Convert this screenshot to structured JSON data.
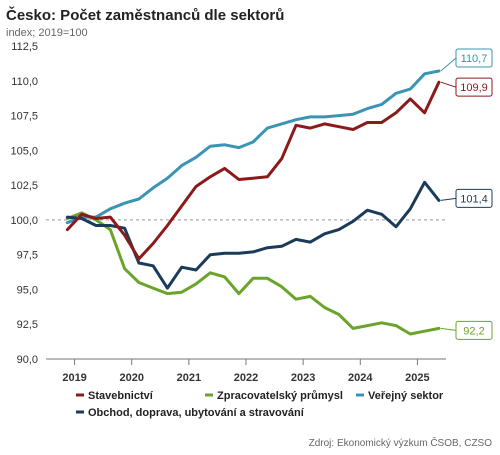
{
  "chart_data": {
    "type": "line",
    "title": "Česko: Počet zaměstnanců dle sektorů",
    "subtitle": "index; 2019=100",
    "source": "Zdroj: Ekonomický výzkum ČSOB, CZSO",
    "ylim": [
      90,
      112.5
    ],
    "yticks": [
      "90,0",
      "92,5",
      "95,0",
      "97,5",
      "100,0",
      "102,5",
      "105,0",
      "107,5",
      "110,0",
      "112,5"
    ],
    "ytick_values": [
      90,
      92.5,
      95,
      97.5,
      100,
      102.5,
      105,
      107.5,
      110,
      112.5
    ],
    "xlim": [
      2018.5,
      2025.5
    ],
    "xticks": [
      "2019",
      "2020",
      "2021",
      "2022",
      "2023",
      "2024",
      "2025"
    ],
    "xtick_values": [
      2019,
      2020,
      2021,
      2022,
      2023,
      2024,
      2025
    ],
    "reference_line": 100,
    "grid": false,
    "legend_position": "bottom",
    "x": [
      2018.875,
      2019.125,
      2019.375,
      2019.625,
      2019.875,
      2020.125,
      2020.375,
      2020.625,
      2020.875,
      2021.125,
      2021.375,
      2021.625,
      2021.875,
      2022.125,
      2022.375,
      2022.625,
      2022.875,
      2023.125,
      2023.375,
      2023.625,
      2023.875,
      2024.125,
      2024.375,
      2024.625,
      2024.875,
      2025.125,
      2025.375
    ],
    "series": [
      {
        "name": "Stavebnictví",
        "color": "#8b1a1a",
        "values": [
          99.3,
          100.4,
          100.1,
          100.2,
          98.9,
          97.2,
          98.3,
          99.6,
          101.0,
          102.4,
          103.1,
          103.7,
          102.9,
          103.0,
          103.1,
          104.4,
          106.8,
          106.6,
          106.9,
          106.7,
          106.5,
          107.0,
          107.0,
          107.7,
          108.7,
          107.7,
          109.9
        ],
        "end_label": "109,9"
      },
      {
        "name": "Zpracovatelský průmysl",
        "color": "#6aa42a",
        "values": [
          100.1,
          100.5,
          100.0,
          99.3,
          96.5,
          95.5,
          95.1,
          94.7,
          94.8,
          95.4,
          96.2,
          95.9,
          94.7,
          95.8,
          95.8,
          95.2,
          94.3,
          94.5,
          93.7,
          93.2,
          92.2,
          92.4,
          92.6,
          92.4,
          91.8,
          92.0,
          92.2
        ],
        "end_label": "92,2"
      },
      {
        "name": "Veřejný sektor",
        "color": "#3a94b4",
        "values": [
          99.8,
          100.2,
          100.2,
          100.8,
          101.2,
          101.5,
          102.3,
          103.0,
          103.9,
          104.5,
          105.3,
          105.4,
          105.2,
          105.6,
          106.6,
          106.9,
          107.2,
          107.4,
          107.4,
          107.5,
          107.6,
          108.0,
          108.3,
          109.1,
          109.4,
          110.5,
          110.7
        ],
        "end_label": "110,7"
      },
      {
        "name": "Obchod, doprava, ubytování a stravování",
        "color": "#1c3b5a",
        "values": [
          100.2,
          100.1,
          99.6,
          99.6,
          99.4,
          96.9,
          96.7,
          95.1,
          96.6,
          96.4,
          97.5,
          97.6,
          97.6,
          97.7,
          98.0,
          98.1,
          98.6,
          98.4,
          99.0,
          99.3,
          99.9,
          100.7,
          100.4,
          99.5,
          100.8,
          102.7,
          101.4
        ],
        "end_label": "101,4"
      }
    ]
  }
}
